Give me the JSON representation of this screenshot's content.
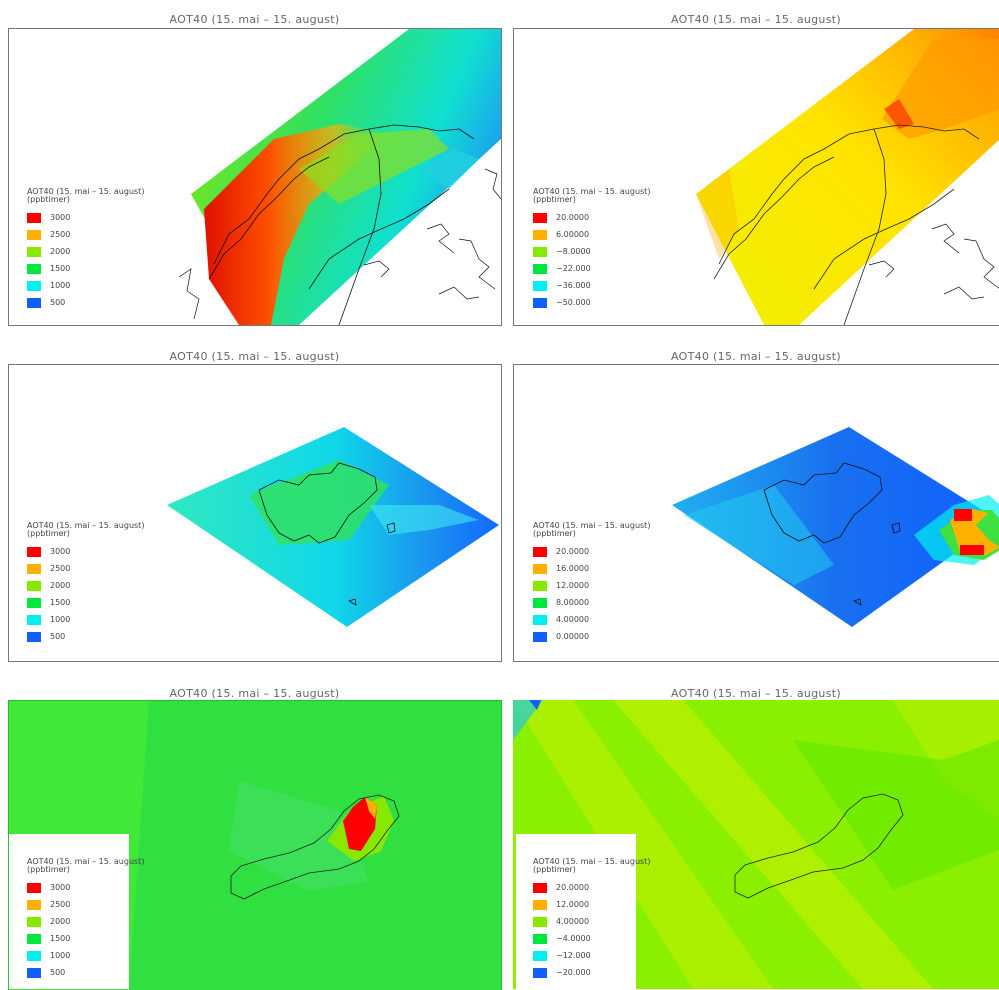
{
  "panels": [
    {
      "title": "AOT40 (15. mai – 15. august)",
      "legend_title": "AOT40 (15. mai – 15. august)",
      "legend_unit": "(ppbtimer)",
      "legend": [
        {
          "label": "3000",
          "color": "#ff0000"
        },
        {
          "label": "2500",
          "color": "#ffb000"
        },
        {
          "label": "2000",
          "color": "#88e800"
        },
        {
          "label": "1500",
          "color": "#00e840"
        },
        {
          "label": "1000",
          "color": "#00f0f0"
        },
        {
          "label": "500",
          "color": "#1060ff"
        }
      ]
    },
    {
      "title": "AOT40 (15. mai – 15. august)",
      "legend_title": "AOT40 (15. mai – 15. august)",
      "legend_unit": "(ppbtimer)",
      "legend": [
        {
          "label": "20.0000",
          "color": "#ff0000"
        },
        {
          "label": "6.00000",
          "color": "#ffb000"
        },
        {
          "label": "−8.0000",
          "color": "#88e800"
        },
        {
          "label": "−22.000",
          "color": "#00e840"
        },
        {
          "label": "−36.000",
          "color": "#00f0f0"
        },
        {
          "label": "−50.000",
          "color": "#1060ff"
        }
      ]
    },
    {
      "title": "AOT40 (15. mai – 15. august)",
      "legend_title": "AOT40 (15. mai – 15. august)",
      "legend_unit": "(ppbtimer)",
      "legend": [
        {
          "label": "3000",
          "color": "#ff0000"
        },
        {
          "label": "2500",
          "color": "#ffb000"
        },
        {
          "label": "2000",
          "color": "#88e800"
        },
        {
          "label": "1500",
          "color": "#00e840"
        },
        {
          "label": "1000",
          "color": "#00f0f0"
        },
        {
          "label": "500",
          "color": "#1060ff"
        }
      ]
    },
    {
      "title": "AOT40 (15. mai – 15. august)",
      "legend_title": "AOT40 (15. mai – 15. august)",
      "legend_unit": "(ppbtimer)",
      "legend": [
        {
          "label": "20.0000",
          "color": "#ff0000"
        },
        {
          "label": "16.0000",
          "color": "#ffb000"
        },
        {
          "label": "12.0000",
          "color": "#88e800"
        },
        {
          "label": "8.00000",
          "color": "#00e840"
        },
        {
          "label": "4.00000",
          "color": "#00f0f0"
        },
        {
          "label": "0.00000",
          "color": "#1060ff"
        }
      ]
    },
    {
      "title": "AOT40 (15. mai – 15. august)",
      "legend_title": "AOT40 (15. mai – 15. august)",
      "legend_unit": "(ppbtimer)",
      "legend": [
        {
          "label": "3000",
          "color": "#ff0000"
        },
        {
          "label": "2500",
          "color": "#ffb000"
        },
        {
          "label": "2000",
          "color": "#88e800"
        },
        {
          "label": "1500",
          "color": "#00e840"
        },
        {
          "label": "1000",
          "color": "#00f0f0"
        },
        {
          "label": "500",
          "color": "#1060ff"
        }
      ]
    },
    {
      "title": "AOT40 (15. mai – 15. august)",
      "legend_title": "AOT40 (15. mai – 15. august)",
      "legend_unit": "(ppbtimer)",
      "legend": [
        {
          "label": "20.0000",
          "color": "#ff0000"
        },
        {
          "label": "12.0000",
          "color": "#ffb000"
        },
        {
          "label": "4.00000",
          "color": "#88e800"
        },
        {
          "label": "−4.0000",
          "color": "#00e840"
        },
        {
          "label": "−12.000",
          "color": "#00f0f0"
        },
        {
          "label": "−20.000",
          "color": "#1060ff"
        }
      ]
    }
  ]
}
